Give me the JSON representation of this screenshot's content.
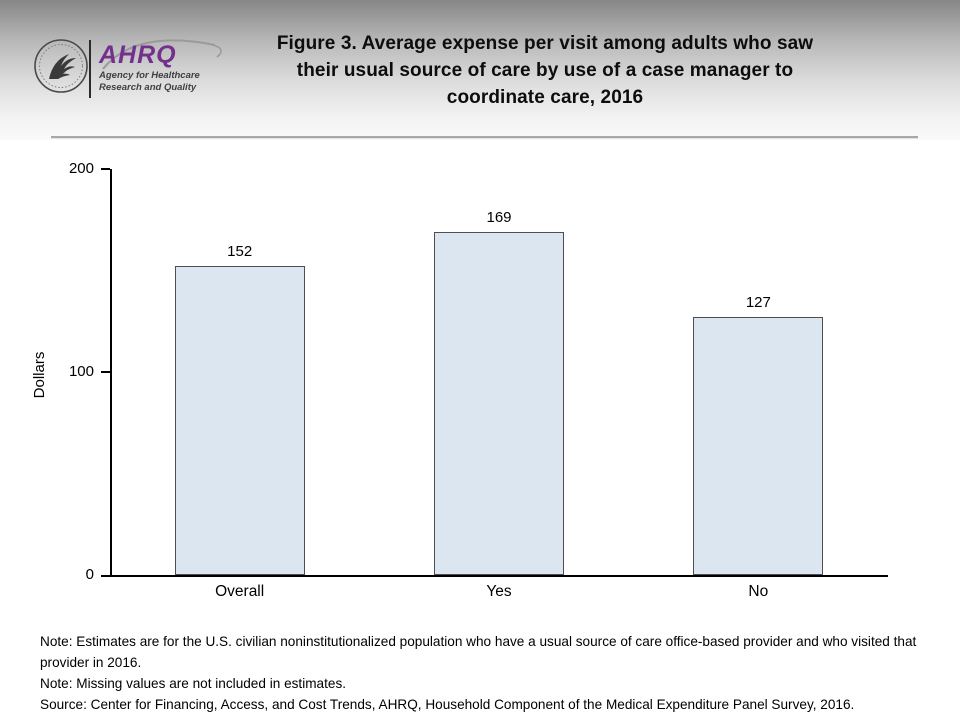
{
  "header": {
    "logo": {
      "acronym": "AHRQ",
      "tagline_line1": "Agency for Healthcare",
      "tagline_line2": "Research and Quality"
    },
    "title_lines": [
      "Figure 3. Average expense per visit among adults who saw",
      "their usual source of care by use of a case manager to",
      "coordinate care, 2016"
    ]
  },
  "chart_data": {
    "type": "bar",
    "title": "Figure 3. Average expense per visit among adults who saw their usual source of care by use of a case manager to coordinate care, 2016",
    "categories": [
      "Overall",
      "Yes",
      "No"
    ],
    "values": [
      152,
      169,
      127
    ],
    "xlabel": "",
    "ylabel": "Dollars",
    "ylim": [
      0,
      200
    ],
    "yticks": [
      0,
      100,
      200
    ],
    "grid": false,
    "legend": null,
    "colors": {
      "bar_fill": "#dce6f1",
      "bar_border": "#4f4f4f",
      "axis": "#000000"
    }
  },
  "notes": [
    "Note: Estimates are for the U.S. civilian noninstitutionalized population who have a usual source of care office-based provider and who visited that provider in 2016.",
    "Note: Missing values are not included in estimates.",
    "Source: Center for Financing, Access, and Cost Trends, AHRQ, Household Component of the Medical Expenditure Panel Survey, 2016."
  ]
}
